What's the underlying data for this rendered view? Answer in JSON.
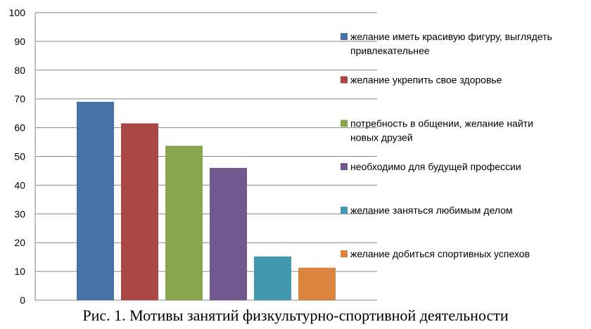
{
  "caption": "Рис. 1. Мотивы занятий физкультурно-спортивной деятельности",
  "chart_data": {
    "type": "bar",
    "title": "",
    "xlabel": "",
    "ylabel": "",
    "ylim": [
      0,
      100
    ],
    "y_ticks": [
      "0",
      "10",
      "20",
      "30",
      "40",
      "50",
      "60",
      "70",
      "80",
      "90",
      "100"
    ],
    "grid": true,
    "legend_position": "right",
    "series": [
      {
        "name": "желание иметь красивую фигуру, выглядеть привлекательнее",
        "name_lines": [
          "желание иметь красивую фигуру, выглядеть",
          "привлекательнее"
        ],
        "value": 69,
        "color": "#4572a7"
      },
      {
        "name": "желание укрепить свое здоровье",
        "name_lines": [
          "желание укрепить свое здоровье"
        ],
        "value": 61.5,
        "color": "#aa4643"
      },
      {
        "name": "потребность в общении, желание найти новых друзей",
        "name_lines": [
          "потребность в общении, желание найти",
          "новых друзей"
        ],
        "value": 53.7,
        "color": "#89a54e"
      },
      {
        "name": "необходимо для будущей профессии",
        "name_lines": [
          "необходимо для будущей профессии"
        ],
        "value": 46,
        "color": "#71588f"
      },
      {
        "name": "желание заняться любимым делом",
        "name_lines": [
          "желание заняться любимым делом"
        ],
        "value": 15.2,
        "color": "#4198af"
      },
      {
        "name": "желание добиться спортивных успехов",
        "name_lines": [
          "желание добиться спортивных успехов"
        ],
        "value": 11.3,
        "color": "#db843d"
      }
    ]
  }
}
